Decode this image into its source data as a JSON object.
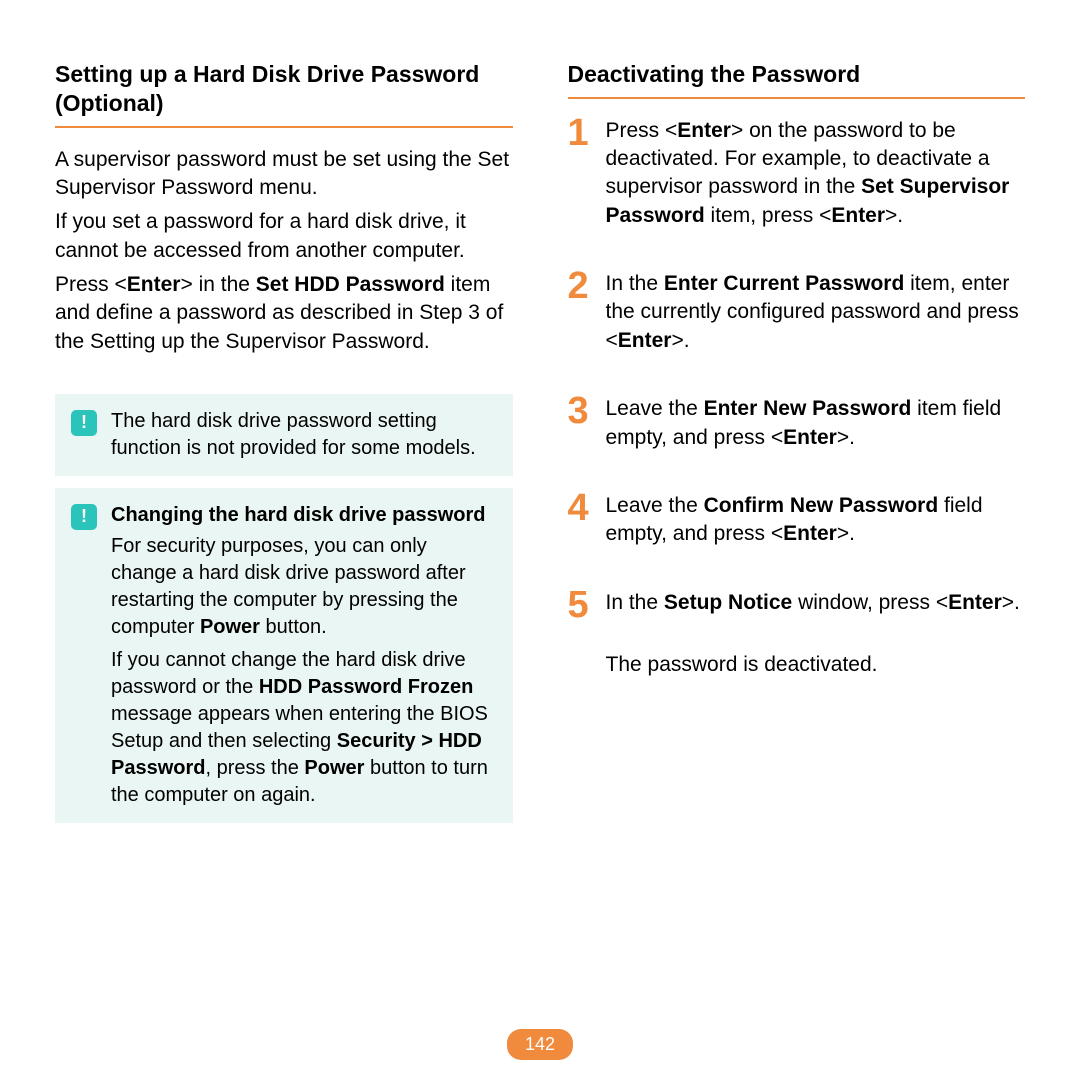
{
  "colors": {
    "accent_orange": "#f08a3c",
    "note_bg": "#eaf6f3",
    "note_icon_bg": "#2bc4bb",
    "text": "#000000",
    "page_bg": "#ffffff"
  },
  "page_number": "142",
  "left": {
    "heading": "Setting up a Hard Disk Drive Password (Optional)",
    "para1": "A supervisor password must be set using the Set Supervisor Password menu.",
    "para2": "If you set a password for a hard disk drive, it cannot be accessed from another computer.",
    "para3_html": "Press <<b>Enter</b>> in the <b>Set HDD Password</b> item and define a password as described in Step 3 of the Setting up the Supervisor Password.",
    "note1_html": "The hard disk drive password setting function is not provided for some models.",
    "note2_title": "Changing the hard disk drive password",
    "note2_p1_html": "For security purposes, you can only change a hard disk drive password after restarting the computer by pressing the computer <b>Power</b> button.",
    "note2_p2_html": "If you cannot change the hard disk drive password or the <b>HDD Password Frozen</b> message appears when entering the BIOS Setup and then selecting <b>Security > HDD Password</b>, press the <b>Power</b> button to turn the computer on again."
  },
  "right": {
    "heading": "Deactivating the Password",
    "steps": [
      {
        "n": "1",
        "html": "Press <<b>Enter</b>> on the password to be deactivated. For example, to deactivate a supervisor password in the <b>Set Supervisor Password</b> item, press <<b>Enter</b>>."
      },
      {
        "n": "2",
        "html": "In the <b>Enter Current Password</b> item, enter the currently configured password and press <<b>Enter</b>>."
      },
      {
        "n": "3",
        "html": "Leave the <b>Enter New Password</b> item field empty, and press <<b>Enter</b>>."
      },
      {
        "n": "4",
        "html": "Leave the <b>Confirm New Password</b> field empty, and press <<b>Enter</b>>."
      },
      {
        "n": "5",
        "html": "In the <b>Setup Notice</b> window, press <<b>Enter</b>>."
      }
    ],
    "after": "The password is deactivated."
  }
}
